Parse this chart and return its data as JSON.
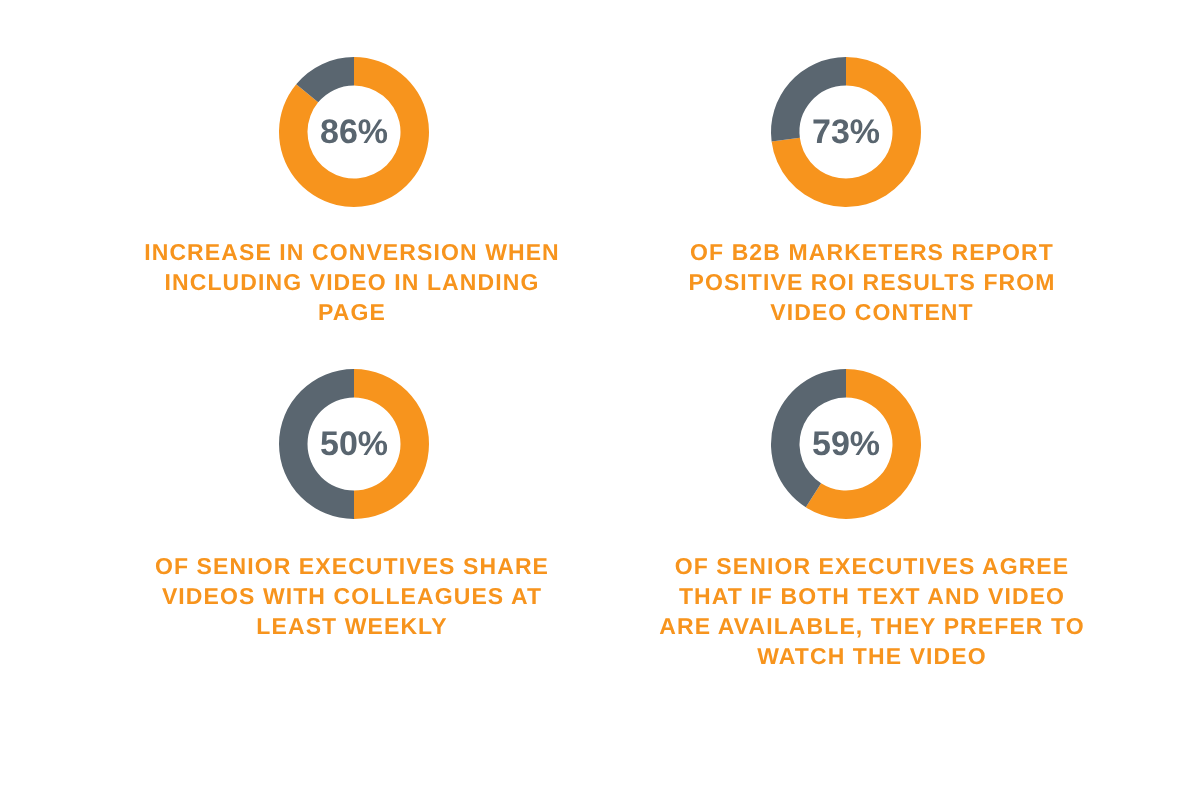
{
  "chart_data": [
    {
      "type": "donut",
      "title": "INCREASE IN CONVERSION WHEN INCLUDING VIDEO IN LANDING PAGE",
      "categories": [
        null,
        null
      ],
      "values": [
        86,
        14
      ],
      "colors": [
        "#f7941d",
        "#5a6670"
      ],
      "value_labels": [
        "86%",
        null
      ]
    },
    {
      "type": "donut",
      "title": "OF B2B MARKETERS REPORT POSITIVE ROI RESULTS FROM VIDEO CONTENT",
      "categories": [
        null,
        null
      ],
      "values": [
        73,
        27
      ],
      "colors": [
        "#f7941d",
        "#5a6670"
      ],
      "value_labels": [
        "73%",
        null
      ]
    },
    {
      "type": "donut",
      "title": "OF SENIOR EXECUTIVES SHARE VIDEOS WITH COLLEAGUES AT LEAST WEEKLY",
      "categories": [
        null,
        null
      ],
      "values": [
        50,
        50
      ],
      "colors": [
        "#f7941d",
        "#5a6670"
      ],
      "value_labels": [
        "50%",
        null
      ]
    },
    {
      "type": "donut",
      "title": "OF SENIOR EXECUTIVES AGREE THAT IF BOTH TEXT AND VIDEO ARE AVAILABLE, THEY PREFER TO WATCH THE VIDEO",
      "categories": [
        null,
        null
      ],
      "values": [
        59,
        41
      ],
      "colors": [
        "#f7941d",
        "#5a6670"
      ],
      "value_labels": [
        "59%",
        null
      ]
    }
  ]
}
